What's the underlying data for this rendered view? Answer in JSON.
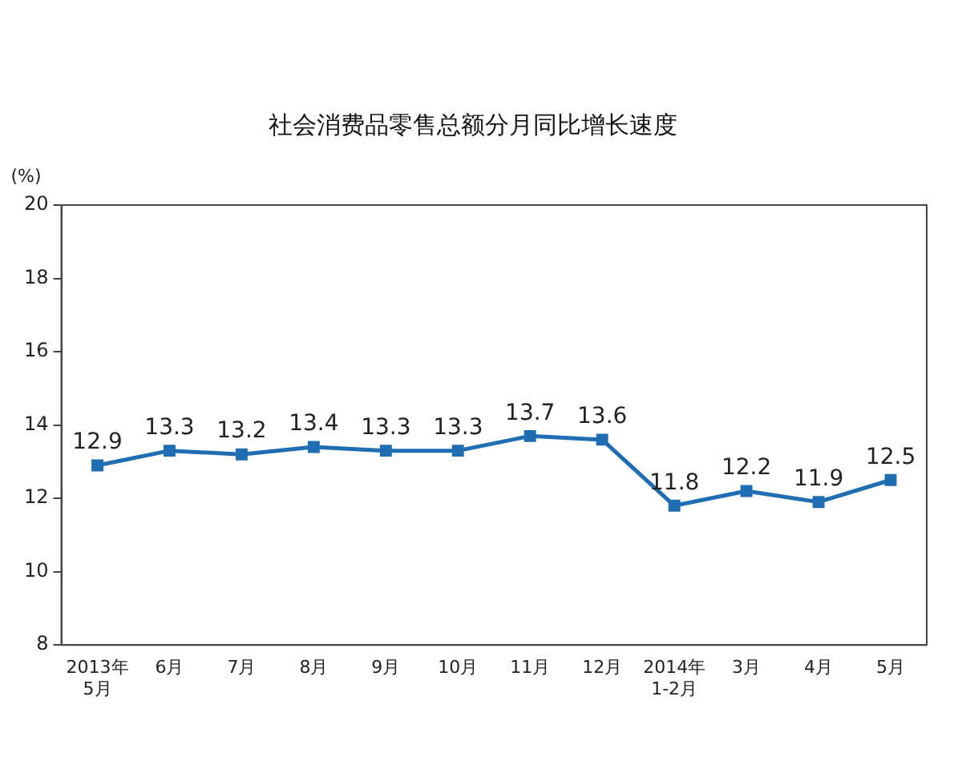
{
  "chart_data": {
    "type": "line",
    "title": "社会消费品零售总额分月同比增长速度",
    "ylabel": "(%)",
    "categories": [
      "2013年\n5月",
      "6月",
      "7月",
      "8月",
      "9月",
      "10月",
      "11月",
      "12月",
      "2014年\n1-2月",
      "3月",
      "4月",
      "5月"
    ],
    "series": [
      {
        "color": "#1f6db3",
        "values": [
          12.9,
          13.3,
          13.2,
          13.4,
          13.3,
          13.3,
          13.7,
          13.6,
          11.8,
          12.2,
          11.9,
          12.5
        ]
      }
    ],
    "ylim": [
      8,
      20
    ],
    "yticks": [
      8,
      10,
      12,
      14,
      16,
      18,
      20
    ],
    "grid": false,
    "legend": false,
    "marker": "square",
    "line_style": "solid",
    "data_labels": true
  }
}
